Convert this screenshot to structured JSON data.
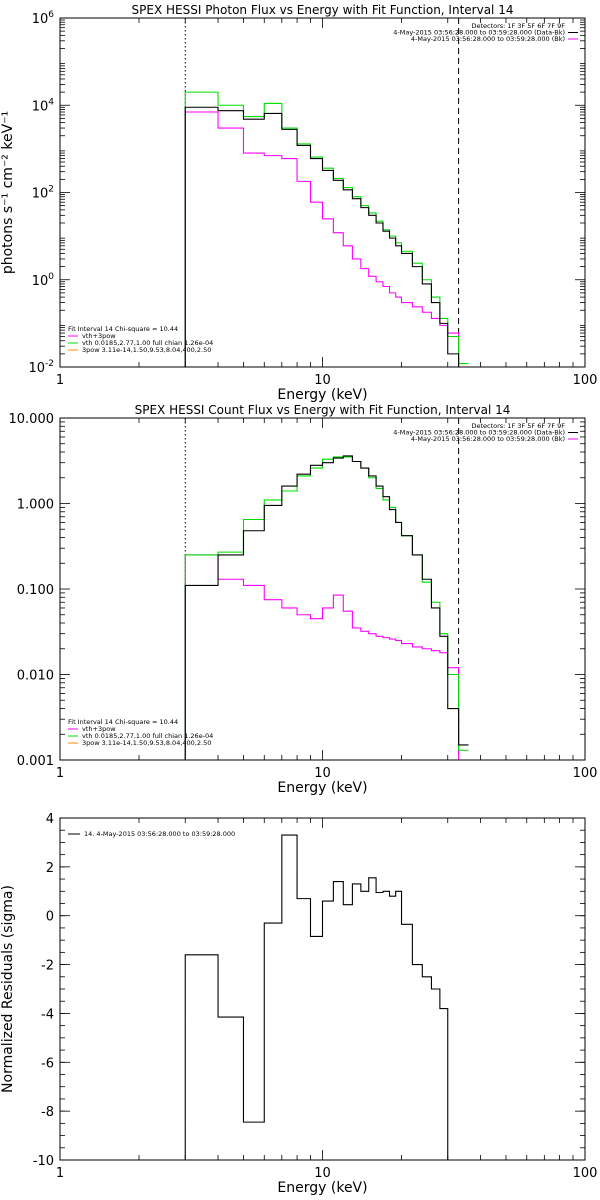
{
  "colors": {
    "data": "#000000",
    "fit_total": "#ff00ff",
    "fit_thermal": "#00dd00",
    "fit_powerlaw": "#ff8800"
  },
  "chart_data": [
    {
      "type": "line",
      "title": "SPEX HESSI Photon Flux vs Energy with Fit Function, Interval 14",
      "xlabel": "Energy (keV)",
      "ylabel": "photons s⁻¹ cm⁻² keV⁻¹",
      "xscale": "log",
      "yscale": "log",
      "xlim": [
        1,
        100
      ],
      "ylim": [
        0.01,
        1000000
      ],
      "xticks": [
        {
          "v": 1,
          "label": "1"
        },
        {
          "v": 10,
          "label": "10"
        },
        {
          "v": 100,
          "label": "100"
        }
      ],
      "yticks": [
        {
          "v": 0.01,
          "base": "10",
          "exp": "-2"
        },
        {
          "v": 1,
          "base": "10",
          "exp": "0"
        },
        {
          "v": 100,
          "base": "10",
          "exp": "2"
        },
        {
          "v": 10000,
          "base": "10",
          "exp": "4"
        },
        {
          "v": 1000000,
          "base": "10",
          "exp": "6"
        }
      ],
      "vlines": [
        {
          "x": 3,
          "style": "dotted"
        },
        {
          "x": 33,
          "style": "dashed"
        }
      ],
      "legend_right": [
        "Detectors: 1F 3F 5F 6F 7F 9F",
        "4-May-2015 03:56:28.000 to 03:59:28.000 (Data-Bk)",
        "4-May-2015 03:56:28.000 to 03:59:28.000 (Bk)"
      ],
      "legend_left": [
        "Fit Interval 14    Chi-square = 10.44",
        "vth+3pow",
        "vth 0.0185,2.77,1.00  full chian 1.26e-04",
        "3pow 3.11e-14,1.50,9.53,8.04,400,2.50"
      ],
      "edges": [
        3,
        4,
        5,
        6,
        7,
        8,
        9,
        10,
        11,
        12,
        13,
        14,
        15,
        16,
        17,
        18,
        19,
        20,
        22,
        24,
        26,
        28,
        30,
        33,
        36
      ],
      "series": [
        {
          "key": "data",
          "values": [
            9000,
            7500,
            4800,
            6500,
            2800,
            1200,
            600,
            320,
            190,
            115,
            72,
            45,
            30,
            20,
            13,
            9,
            6,
            4,
            2,
            0.8,
            0.3,
            0.1,
            0.02,
            0.01
          ]
        },
        {
          "key": "thermal",
          "values": [
            20000,
            10000,
            5500,
            11000,
            3000,
            1300,
            650,
            360,
            210,
            130,
            80,
            50,
            34,
            22,
            14,
            10,
            7,
            4.5,
            2.4,
            1.0,
            0.4,
            0.13,
            0.05,
            0.012
          ]
        },
        {
          "key": "total",
          "values": [
            7000,
            3000,
            800,
            700,
            600,
            180,
            60,
            25,
            12,
            6,
            3,
            1.8,
            1.2,
            0.9,
            0.7,
            0.5,
            0.4,
            0.3,
            0.24,
            0.18,
            0.13,
            0.09,
            0.06,
            0.01
          ]
        }
      ]
    },
    {
      "type": "line",
      "title": "SPEX HESSI Count Flux vs Energy with Fit Function, Interval 14",
      "xlabel": "Energy (keV)",
      "ylabel": "",
      "xscale": "log",
      "yscale": "log",
      "xlim": [
        1,
        100
      ],
      "ylim": [
        0.001,
        10
      ],
      "xticks": [
        {
          "v": 1,
          "label": "1"
        },
        {
          "v": 10,
          "label": "10"
        },
        {
          "v": 100,
          "label": "100"
        }
      ],
      "yticks": [
        {
          "v": 0.001,
          "label": "0.001"
        },
        {
          "v": 0.01,
          "label": "0.010"
        },
        {
          "v": 0.1,
          "label": "0.100"
        },
        {
          "v": 1,
          "label": "1.000"
        },
        {
          "v": 10,
          "label": "10.000"
        }
      ],
      "vlines": [
        {
          "x": 3,
          "style": "dotted"
        },
        {
          "x": 33,
          "style": "dashed"
        }
      ],
      "legend_right": [
        "Detectors: 1F 3F 5F 6F 7F 9F",
        "4-May-2015 03:56:28.000 to 03:59:28.000 (Data-Bk)",
        "4-May-2015 03:56:28.000 to 03:59:28.000 (Bk)"
      ],
      "legend_left": [
        "Fit Interval 14    Chi-square = 10.44",
        "vth+3pow",
        "vth 0.0185,2.77,1.00  full chian 1.26e-04",
        "3pow 3.11e-14,1.50,9.53,8.04,400,2.50"
      ],
      "edges": [
        3,
        4,
        5,
        6,
        7,
        8,
        9,
        10,
        11,
        12,
        13,
        14,
        15,
        16,
        17,
        18,
        19,
        20,
        22,
        24,
        26,
        28,
        30,
        33,
        36
      ],
      "series": [
        {
          "key": "data",
          "values": [
            0.11,
            0.25,
            0.48,
            0.95,
            1.6,
            2.2,
            2.8,
            3.0,
            3.4,
            3.6,
            3.1,
            2.6,
            2.1,
            1.6,
            1.2,
            0.85,
            0.6,
            0.42,
            0.25,
            0.13,
            0.06,
            0.028,
            0.004,
            0.0015
          ]
        },
        {
          "key": "thermal",
          "values": [
            0.25,
            0.27,
            0.65,
            1.1,
            1.4,
            2.1,
            2.6,
            3.3,
            3.5,
            3.5,
            3.1,
            2.6,
            2.0,
            1.5,
            1.1,
            0.9,
            0.6,
            0.42,
            0.25,
            0.12,
            0.07,
            0.03,
            0.01,
            0.0013
          ]
        },
        {
          "key": "total",
          "values": [
            0.25,
            0.13,
            0.11,
            0.075,
            0.06,
            0.05,
            0.045,
            0.06,
            0.085,
            0.055,
            0.035,
            0.032,
            0.03,
            0.028,
            0.027,
            0.026,
            0.025,
            0.023,
            0.021,
            0.02,
            0.019,
            0.018,
            0.012,
            0.0006
          ]
        }
      ]
    },
    {
      "type": "line",
      "title": "",
      "xlabel": "Energy (keV)",
      "ylabel": "Normalized Residuals (sigma)",
      "xscale": "log",
      "yscale": "linear",
      "xlim": [
        1,
        100
      ],
      "ylim": [
        -10,
        4
      ],
      "xticks": [
        {
          "v": 1,
          "label": "1"
        },
        {
          "v": 10,
          "label": "10"
        },
        {
          "v": 100,
          "label": "100"
        }
      ],
      "yticks": [
        {
          "v": -10,
          "label": "-10"
        },
        {
          "v": -8,
          "label": "-8"
        },
        {
          "v": -6,
          "label": "-6"
        },
        {
          "v": -4,
          "label": "-4"
        },
        {
          "v": -2,
          "label": "-2"
        },
        {
          "v": 0,
          "label": "0"
        },
        {
          "v": 2,
          "label": "2"
        },
        {
          "v": 4,
          "label": "4"
        }
      ],
      "vlines": [],
      "legend_left": [
        "14.  4-May-2015 03:56:28.000 to 03:59:28.000"
      ],
      "edges": [
        3,
        4,
        5,
        6,
        7,
        8,
        9,
        10,
        11,
        12,
        13,
        14,
        15,
        16,
        17,
        18,
        19,
        20,
        22,
        24,
        26,
        28,
        30,
        33
      ],
      "series": [
        {
          "key": "data",
          "values": [
            -1.6,
            -4.15,
            -8.45,
            -0.3,
            3.3,
            0.7,
            -0.85,
            0.6,
            1.4,
            0.45,
            1.3,
            1.0,
            1.55,
            0.95,
            1.0,
            0.8,
            1.0,
            -0.35,
            -2.0,
            -2.5,
            -3.0,
            -3.8,
            -10
          ]
        }
      ]
    }
  ]
}
